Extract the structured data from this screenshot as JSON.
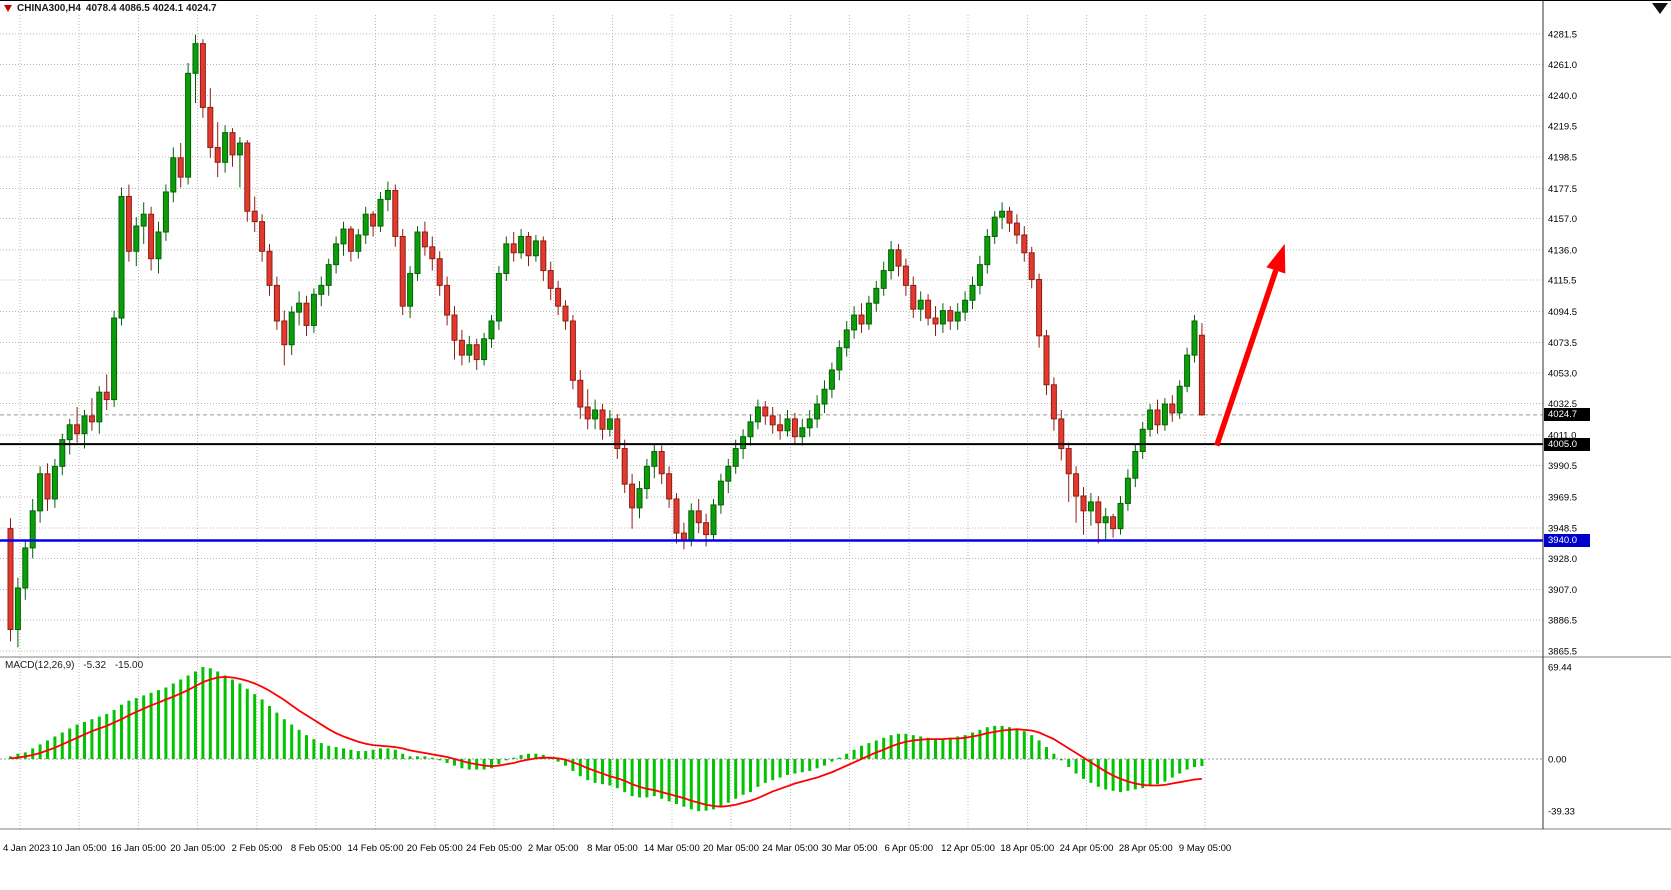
{
  "symbol_bar": {
    "symbol_timeframe": "CHINA300,H4",
    "ohlc_text": "4078.4 4086.5 4024.1 4024.7"
  },
  "macd_panel": {
    "name": "MACD(12,26,9)",
    "value_main": "-5.32",
    "value_signal": "-15.00",
    "axis_labels": [
      "69.44",
      "0.00",
      "-39.33"
    ]
  },
  "levels": {
    "last_price": {
      "text": "4024.7",
      "price": 4024.7,
      "badge_bg": "#000000",
      "badge_fg": "#ffffff",
      "line_color": "#9a9a9a"
    },
    "resistance_line": {
      "text": "4005.0",
      "price": 4005.0,
      "color": "#000000",
      "badge_bg": "#000000",
      "badge_fg": "#ffffff"
    },
    "support_line": {
      "text": "3940.0",
      "price": 3940.0,
      "color": "#0000ee",
      "badge_bg": "#0000cc",
      "badge_fg": "#ffffff"
    }
  },
  "chart_data": {
    "type": "candlestick",
    "symbol": "CHINA300",
    "timeframe": "H4",
    "price_axis": {
      "tick_labels": [
        "4281.5",
        "4261.0",
        "4240.0",
        "4219.5",
        "4198.5",
        "4177.5",
        "4157.0",
        "4136.0",
        "4115.5",
        "4094.5",
        "4073.5",
        "4053.0",
        "4032.5",
        "4011.0",
        "3990.5",
        "3969.5",
        "3948.5",
        "3928.0",
        "3907.0",
        "3886.5",
        "3865.5"
      ]
    },
    "time_labels": [
      "4 Jan 2023",
      "10 Jan 05:00",
      "16 Jan 05:00",
      "20 Jan 05:00",
      "2 Feb 05:00",
      "8 Feb 05:00",
      "14 Feb 05:00",
      "20 Feb 05:00",
      "24 Feb 05:00",
      "2 Mar 05:00",
      "8 Mar 05:00",
      "14 Mar 05:00",
      "20 Mar 05:00",
      "24 Mar 05:00",
      "30 Mar 05:00",
      "6 Apr 05:00",
      "12 Apr 05:00",
      "18 Apr 05:00",
      "24 Apr 05:00",
      "28 Apr 05:00",
      "9 May 05:00"
    ],
    "first_label_index": 1.62,
    "label_step": 8.007,
    "colors": {
      "up": "#0b9e0b",
      "up_border": "#056105",
      "down": "#e23a2e",
      "down_border": "#8f1d14",
      "grid": "#b8b8b8",
      "separator": "#808080",
      "axis_line": "#333333",
      "macd_hist": "#00c400",
      "macd_signal": "#ff0000",
      "arrow": "#ff0000",
      "background": "#ffffff"
    },
    "ohlc": [
      [
        3948,
        3955,
        3872,
        3880
      ],
      [
        3880,
        3915,
        3868,
        3908
      ],
      [
        3908,
        3940,
        3900,
        3935
      ],
      [
        3935,
        3968,
        3928,
        3960
      ],
      [
        3960,
        3990,
        3952,
        3985
      ],
      [
        3985,
        3992,
        3960,
        3968
      ],
      [
        3968,
        3995,
        3962,
        3990
      ],
      [
        3990,
        4012,
        3984,
        4008
      ],
      [
        4008,
        4022,
        3998,
        4018
      ],
      [
        4018,
        4030,
        4006,
        4012
      ],
      [
        4012,
        4028,
        4002,
        4024
      ],
      [
        4024,
        4036,
        4014,
        4020
      ],
      [
        4020,
        4044,
        4012,
        4040
      ],
      [
        4040,
        4052,
        4028,
        4035
      ],
      [
        4035,
        4095,
        4030,
        4090
      ],
      [
        4090,
        4178,
        4085,
        4172
      ],
      [
        4172,
        4180,
        4128,
        4135
      ],
      [
        4135,
        4158,
        4125,
        4152
      ],
      [
        4152,
        4168,
        4140,
        4160
      ],
      [
        4160,
        4165,
        4122,
        4130
      ],
      [
        4130,
        4155,
        4120,
        4148
      ],
      [
        4148,
        4180,
        4142,
        4175
      ],
      [
        4175,
        4205,
        4168,
        4198
      ],
      [
        4198,
        4208,
        4178,
        4185
      ],
      [
        4185,
        4262,
        4180,
        4255
      ],
      [
        4255,
        4281,
        4235,
        4275
      ],
      [
        4275,
        4278,
        4225,
        4232
      ],
      [
        4232,
        4245,
        4198,
        4205
      ],
      [
        4205,
        4222,
        4185,
        4195
      ],
      [
        4195,
        4220,
        4188,
        4215
      ],
      [
        4215,
        4218,
        4192,
        4200
      ],
      [
        4200,
        4212,
        4178,
        4208
      ],
      [
        4208,
        4210,
        4155,
        4162
      ],
      [
        4162,
        4172,
        4148,
        4155
      ],
      [
        4155,
        4160,
        4128,
        4135
      ],
      [
        4135,
        4140,
        4105,
        4112
      ],
      [
        4112,
        4118,
        4082,
        4088
      ],
      [
        4088,
        4095,
        4058,
        4072
      ],
      [
        4072,
        4098,
        4065,
        4094
      ],
      [
        4094,
        4108,
        4085,
        4100
      ],
      [
        4100,
        4105,
        4078,
        4085
      ],
      [
        4085,
        4110,
        4080,
        4106
      ],
      [
        4106,
        4118,
        4098,
        4112
      ],
      [
        4112,
        4130,
        4105,
        4126
      ],
      [
        4126,
        4145,
        4120,
        4140
      ],
      [
        4140,
        4155,
        4132,
        4150
      ],
      [
        4150,
        4152,
        4128,
        4135
      ],
      [
        4135,
        4150,
        4130,
        4146
      ],
      [
        4146,
        4165,
        4140,
        4160
      ],
      [
        4160,
        4162,
        4145,
        4152
      ],
      [
        4152,
        4175,
        4148,
        4170
      ],
      [
        4170,
        4182,
        4162,
        4176
      ],
      [
        4176,
        4180,
        4138,
        4145
      ],
      [
        4145,
        4150,
        4092,
        4098
      ],
      [
        4098,
        4125,
        4090,
        4120
      ],
      [
        4120,
        4152,
        4115,
        4148
      ],
      [
        4148,
        4155,
        4132,
        4138
      ],
      [
        4138,
        4145,
        4122,
        4130
      ],
      [
        4130,
        4135,
        4105,
        4112
      ],
      [
        4112,
        4118,
        4085,
        4092
      ],
      [
        4092,
        4098,
        4062,
        4075
      ],
      [
        4075,
        4082,
        4058,
        4065
      ],
      [
        4065,
        4078,
        4060,
        4072
      ],
      [
        4072,
        4076,
        4055,
        4062
      ],
      [
        4062,
        4080,
        4058,
        4076
      ],
      [
        4076,
        4092,
        4070,
        4088
      ],
      [
        4088,
        4125,
        4082,
        4120
      ],
      [
        4120,
        4145,
        4115,
        4140
      ],
      [
        4140,
        4148,
        4128,
        4134
      ],
      [
        4134,
        4150,
        4130,
        4145
      ],
      [
        4145,
        4148,
        4125,
        4132
      ],
      [
        4132,
        4146,
        4128,
        4142
      ],
      [
        4142,
        4145,
        4115,
        4122
      ],
      [
        4122,
        4128,
        4102,
        4110
      ],
      [
        4110,
        4115,
        4092,
        4098
      ],
      [
        4098,
        4102,
        4082,
        4088
      ],
      [
        4088,
        4092,
        4042,
        4048
      ],
      [
        4048,
        4055,
        4022,
        4030
      ],
      [
        4030,
        4042,
        4015,
        4022
      ],
      [
        4022,
        4035,
        4015,
        4028
      ],
      [
        4028,
        4032,
        4008,
        4015
      ],
      [
        4015,
        4028,
        4010,
        4022
      ],
      [
        4022,
        4025,
        3995,
        4002
      ],
      [
        4002,
        4008,
        3972,
        3978
      ],
      [
        3978,
        3985,
        3948,
        3962
      ],
      [
        3962,
        3980,
        3955,
        3975
      ],
      [
        3975,
        3995,
        3968,
        3990
      ],
      [
        3990,
        4005,
        3982,
        4000
      ],
      [
        4000,
        4004,
        3978,
        3985
      ],
      [
        3985,
        3990,
        3962,
        3968
      ],
      [
        3968,
        3972,
        3938,
        3945
      ],
      [
        3945,
        3952,
        3934,
        3940
      ],
      [
        3940,
        3965,
        3936,
        3960
      ],
      [
        3960,
        3968,
        3945,
        3952
      ],
      [
        3952,
        3958,
        3936,
        3944
      ],
      [
        3944,
        3968,
        3940,
        3964
      ],
      [
        3964,
        3985,
        3958,
        3980
      ],
      [
        3980,
        3995,
        3972,
        3990
      ],
      [
        3990,
        4008,
        3985,
        4002
      ],
      [
        4002,
        4015,
        3995,
        4010
      ],
      [
        4010,
        4025,
        4004,
        4020
      ],
      [
        4020,
        4035,
        4015,
        4030
      ],
      [
        4030,
        4034,
        4018,
        4024
      ],
      [
        4024,
        4030,
        4012,
        4018
      ],
      [
        4018,
        4025,
        4008,
        4014
      ],
      [
        4014,
        4028,
        4010,
        4022
      ],
      [
        4022,
        4026,
        4005,
        4010
      ],
      [
        4010,
        4022,
        4004,
        4016
      ],
      [
        4016,
        4028,
        4010,
        4022
      ],
      [
        4022,
        4038,
        4016,
        4032
      ],
      [
        4032,
        4048,
        4026,
        4042
      ],
      [
        4042,
        4060,
        4036,
        4055
      ],
      [
        4055,
        4075,
        4048,
        4070
      ],
      [
        4070,
        4088,
        4064,
        4082
      ],
      [
        4082,
        4098,
        4076,
        4092
      ],
      [
        4092,
        4100,
        4080,
        4086
      ],
      [
        4086,
        4105,
        4082,
        4100
      ],
      [
        4100,
        4115,
        4094,
        4110
      ],
      [
        4110,
        4128,
        4105,
        4122
      ],
      [
        4122,
        4142,
        4116,
        4136
      ],
      [
        4136,
        4140,
        4118,
        4125
      ],
      [
        4125,
        4130,
        4105,
        4112
      ],
      [
        4112,
        4118,
        4090,
        4096
      ],
      [
        4096,
        4108,
        4088,
        4102
      ],
      [
        4102,
        4106,
        4085,
        4090
      ],
      [
        4090,
        4098,
        4078,
        4086
      ],
      [
        4086,
        4100,
        4080,
        4095
      ],
      [
        4095,
        4098,
        4082,
        4088
      ],
      [
        4088,
        4100,
        4082,
        4094
      ],
      [
        4094,
        4108,
        4088,
        4102
      ],
      [
        4102,
        4118,
        4096,
        4112
      ],
      [
        4112,
        4132,
        4106,
        4126
      ],
      [
        4126,
        4150,
        4120,
        4145
      ],
      [
        4145,
        4162,
        4140,
        4158
      ],
      [
        4158,
        4168,
        4150,
        4162
      ],
      [
        4162,
        4165,
        4148,
        4154
      ],
      [
        4154,
        4160,
        4140,
        4146
      ],
      [
        4146,
        4152,
        4128,
        4134
      ],
      [
        4134,
        4138,
        4110,
        4116
      ],
      [
        4116,
        4120,
        4070,
        4078
      ],
      [
        4078,
        4082,
        4038,
        4045
      ],
      [
        4045,
        4050,
        4014,
        4022
      ],
      [
        4022,
        4028,
        3994,
        4002
      ],
      [
        4002,
        4006,
        3966,
        3985
      ],
      [
        3985,
        3990,
        3952,
        3970
      ],
      [
        3970,
        3976,
        3944,
        3960
      ],
      [
        3960,
        3972,
        3950,
        3966
      ],
      [
        3966,
        3970,
        3938,
        3952
      ],
      [
        3952,
        3962,
        3940,
        3956
      ],
      [
        3956,
        3958,
        3942,
        3948
      ],
      [
        3948,
        3970,
        3944,
        3965
      ],
      [
        3965,
        3988,
        3960,
        3982
      ],
      [
        3982,
        4005,
        3976,
        4000
      ],
      [
        4000,
        4020,
        3995,
        4015
      ],
      [
        4015,
        4032,
        4010,
        4028
      ],
      [
        4028,
        4035,
        4012,
        4018
      ],
      [
        4018,
        4036,
        4014,
        4032
      ],
      [
        4032,
        4038,
        4020,
        4026
      ],
      [
        4026,
        4048,
        4022,
        4044
      ],
      [
        4044,
        4070,
        4040,
        4065
      ],
      [
        4065,
        4092,
        4060,
        4088
      ],
      [
        4078.4,
        4086.5,
        4024.1,
        4024.7
      ]
    ],
    "macd": {
      "axis": {
        "max": 69.44,
        "zero": 0.0,
        "min": -39.33
      },
      "histogram": [
        2,
        4,
        5,
        8,
        11,
        14,
        17,
        20,
        23,
        26,
        28,
        30,
        32,
        34,
        37,
        41,
        44,
        46,
        48,
        50,
        52,
        54,
        57,
        60,
        63,
        66,
        69.44,
        68.5,
        66,
        63,
        60,
        57,
        53,
        49,
        45,
        40,
        35,
        30,
        26,
        22,
        18,
        15,
        12,
        10,
        9,
        8,
        7,
        6,
        6,
        7,
        8,
        8,
        7,
        4,
        2,
        2,
        2,
        1,
        -1,
        -3,
        -5,
        -7,
        -8,
        -8,
        -8,
        -7,
        -4,
        -1,
        1,
        3,
        4,
        4,
        3,
        1,
        -2,
        -5,
        -9,
        -13,
        -16,
        -18,
        -19,
        -20,
        -22,
        -25,
        -28,
        -29,
        -29,
        -28,
        -30,
        -32,
        -34,
        -36,
        -38,
        -39.33,
        -39,
        -38,
        -36,
        -33,
        -30,
        -27,
        -25,
        -21,
        -18,
        -16,
        -14,
        -12,
        -11,
        -10,
        -9,
        -7,
        -5,
        -2,
        1,
        4,
        7,
        10,
        12,
        14,
        16,
        18,
        19,
        19,
        18,
        17,
        16,
        15,
        15,
        16,
        17,
        18,
        20,
        22,
        24,
        25,
        25,
        24,
        23,
        21,
        18,
        14,
        9,
        4,
        -1,
        -6,
        -11,
        -15,
        -18,
        -21,
        -23,
        -24,
        -25,
        -24,
        -23,
        -22,
        -20,
        -19,
        -17,
        -14,
        -11,
        -8,
        -6,
        -5.32
      ],
      "signal": [
        0.5,
        1,
        2,
        3,
        4.5,
        6.5,
        8.5,
        11,
        13.5,
        16,
        18.5,
        21,
        23,
        25,
        27.5,
        30,
        33,
        35.5,
        38,
        40.5,
        42.5,
        45,
        47,
        49.5,
        52,
        55,
        58,
        60,
        61.5,
        62,
        61.5,
        60.5,
        59,
        57,
        54.5,
        51.5,
        48,
        44.5,
        40.5,
        36.5,
        33,
        29.5,
        26,
        22.5,
        19.5,
        17,
        15,
        13,
        11.5,
        10.5,
        10,
        9.5,
        9,
        8,
        6.5,
        5.5,
        4.5,
        3.5,
        2.5,
        1.5,
        0,
        -1.5,
        -3,
        -4,
        -5,
        -5.5,
        -5,
        -4,
        -3,
        -1.5,
        -0.5,
        0.5,
        1,
        1,
        0.5,
        -0.5,
        -2.5,
        -4.5,
        -7,
        -9,
        -11,
        -13,
        -14.5,
        -16.5,
        -19,
        -21,
        -22.5,
        -23.5,
        -25,
        -26.5,
        -28,
        -29.5,
        -31.5,
        -33,
        -34.5,
        -35.5,
        -36,
        -35.5,
        -34.5,
        -33,
        -31.5,
        -29.5,
        -27,
        -24.5,
        -22.5,
        -20.5,
        -18.5,
        -17,
        -15.5,
        -14,
        -12,
        -10,
        -7.5,
        -5,
        -2.5,
        0,
        2.5,
        5,
        7,
        9.5,
        11.5,
        13,
        14,
        14.5,
        15,
        15,
        15,
        15.5,
        15.5,
        16,
        17,
        18,
        19.5,
        20.5,
        21.5,
        22,
        22.5,
        22,
        21.5,
        20,
        17.5,
        15,
        11.5,
        8,
        4.5,
        1,
        -2.5,
        -6,
        -9.5,
        -12.5,
        -15,
        -17,
        -18.5,
        -19.5,
        -20,
        -20,
        -19.5,
        -18.5,
        -17.5,
        -16.5,
        -15.5,
        -15
      ]
    },
    "annotation_arrow": {
      "from_index": 163,
      "from_price": 4004,
      "to_index": 172.2,
      "to_price": 4140,
      "color": "#ff0000",
      "width": 5.5
    }
  }
}
